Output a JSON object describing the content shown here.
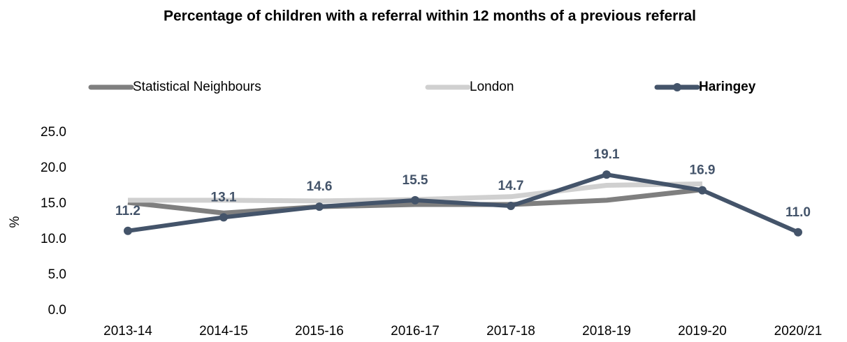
{
  "chart_data": {
    "type": "line",
    "title": "Percentage of children with a referral within 12 months of a previous referral",
    "y_label": "%",
    "categories": [
      "2013-14",
      "2014-15",
      "2015-16",
      "2016-17",
      "2017-18",
      "2018-19",
      "2019-20",
      "2020/21"
    ],
    "series": [
      {
        "name": "Statistical Neighbours",
        "color": "#7f7f7f",
        "values": [
          15.2,
          13.7,
          14.6,
          14.9,
          14.9,
          15.5,
          17.0,
          null
        ]
      },
      {
        "name": "London",
        "color": "#d0d0d0",
        "values": [
          15.5,
          15.5,
          15.4,
          15.6,
          16.0,
          17.6,
          17.8,
          null
        ]
      },
      {
        "name": "Haringey",
        "color": "#44546a",
        "values": [
          11.2,
          13.1,
          14.6,
          15.5,
          14.7,
          19.1,
          16.9,
          11.0
        ],
        "value_labels": [
          "11.2",
          "13.1",
          "14.6",
          "15.5",
          "14.7",
          "19.1",
          "16.9",
          "11.0"
        ],
        "markers": true
      }
    ],
    "ylim": [
      0,
      25
    ],
    "yticks": [
      {
        "value": 0,
        "label": "0.0"
      },
      {
        "value": 5,
        "label": "5.0"
      },
      {
        "value": 10,
        "label": "10.0"
      },
      {
        "value": 15,
        "label": "15.0"
      },
      {
        "value": 20,
        "label": "20.0"
      },
      {
        "value": 25,
        "label": "25.0"
      }
    ],
    "grid": false,
    "legend": "top"
  }
}
